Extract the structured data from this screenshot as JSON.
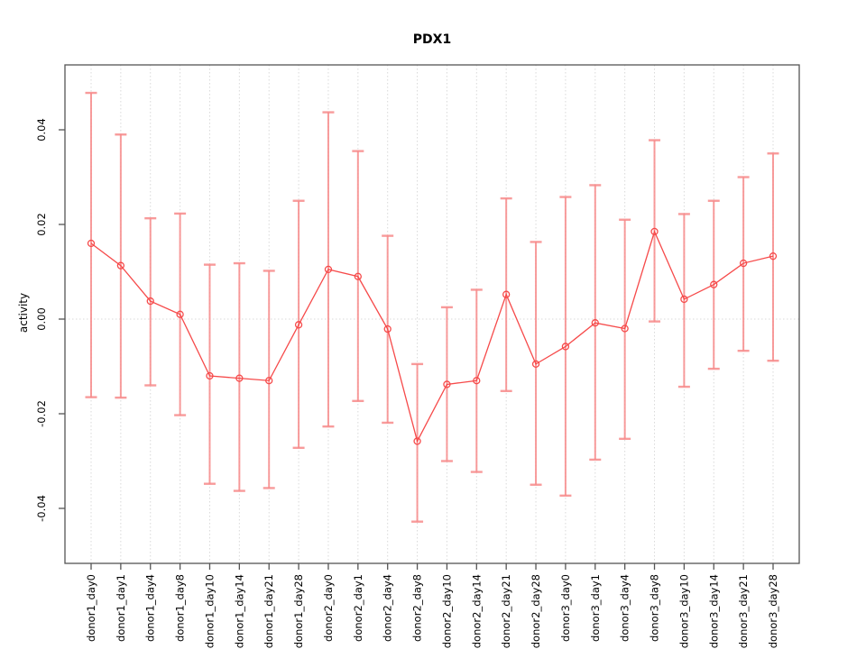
{
  "title": "PDX1",
  "chart_data": {
    "type": "scatter",
    "title": "PDX1",
    "xlabel": "",
    "ylabel": "activity",
    "ylim": [
      -0.0516,
      0.0537
    ],
    "yticks": [
      -0.04,
      -0.02,
      0,
      0.02,
      0.04
    ],
    "ytick_labels": [
      "-0.04",
      "-0.02",
      "0.00",
      "0.02",
      "0.04"
    ],
    "grid": "vertical dotted gridline per category, dotted horizontal line at y=0",
    "legend_position": "none",
    "point_style": "open circle with vertical error bars and connecting line",
    "categories": [
      "donor1_day0",
      "donor1_day1",
      "donor1_day4",
      "donor1_day8",
      "donor1_day10",
      "donor1_day14",
      "donor1_day21",
      "donor1_day28",
      "donor2_day0",
      "donor2_day1",
      "donor2_day4",
      "donor2_day8",
      "donor2_day10",
      "donor2_day14",
      "donor2_day21",
      "donor2_day28",
      "donor3_day0",
      "donor3_day1",
      "donor3_day4",
      "donor3_day8",
      "donor3_day10",
      "donor3_day14",
      "donor3_day21",
      "donor3_day28"
    ],
    "series": [
      {
        "name": "activity",
        "values": [
          0.016,
          0.0113,
          0.0038,
          0.001,
          -0.012,
          -0.0125,
          -0.013,
          -0.0012,
          0.0105,
          0.009,
          -0.0021,
          -0.0258,
          -0.0138,
          -0.013,
          0.0052,
          -0.0095,
          -0.0058,
          -0.0008,
          -0.002,
          0.0185,
          0.0042,
          0.0073,
          0.0118,
          0.0133
        ],
        "err_high": [
          0.0478,
          0.039,
          0.0213,
          0.0223,
          0.0115,
          0.0118,
          0.0102,
          0.025,
          0.0437,
          0.0355,
          0.0176,
          -0.0095,
          0.0025,
          0.0062,
          0.0255,
          0.0163,
          0.0258,
          0.0283,
          0.021,
          0.0378,
          0.0222,
          0.025,
          0.03,
          0.035
        ],
        "err_low": [
          -0.0165,
          -0.0166,
          -0.014,
          -0.0203,
          -0.0348,
          -0.0363,
          -0.0357,
          -0.0272,
          -0.0227,
          -0.0173,
          -0.0219,
          -0.0428,
          -0.03,
          -0.0323,
          -0.0152,
          -0.035,
          -0.0373,
          -0.0297,
          -0.0253,
          -0.0005,
          -0.0143,
          -0.0105,
          -0.0067,
          -0.0088
        ]
      }
    ],
    "colors": {
      "point": "#f64a4a",
      "line": "#f64a4a",
      "error_bar": "#f78a8a",
      "grid": "#d9d9d9",
      "zero_line": "#d9d9d9",
      "frame": "#555555",
      "tick": "#555555",
      "text": "#000000",
      "background": "#ffffff"
    }
  }
}
